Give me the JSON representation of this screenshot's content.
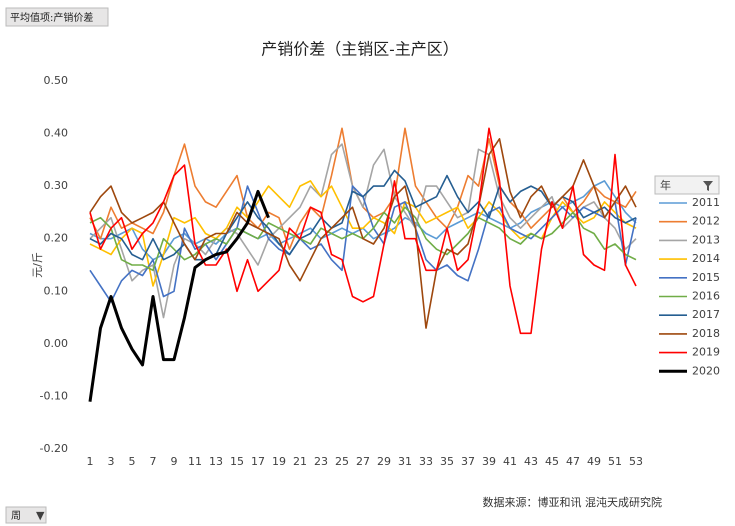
{
  "pivot_field": "平均值项:产销价差",
  "axis_field": "周",
  "legend_title": "年",
  "chart_data": {
    "type": "line",
    "title": "产销价差（主销区-主产区）",
    "y_label": "元/斤",
    "source": "数据来源：博亚和讯 混沌天成研究院",
    "categories": [
      1,
      null,
      3,
      null,
      5,
      null,
      7,
      null,
      9,
      null,
      11,
      null,
      13,
      null,
      15,
      null,
      17,
      null,
      19,
      null,
      21,
      null,
      23,
      null,
      25,
      null,
      27,
      null,
      29,
      null,
      31,
      null,
      33,
      null,
      35,
      null,
      37,
      null,
      39,
      null,
      41,
      null,
      43,
      null,
      45,
      null,
      47,
      null,
      49,
      null,
      51,
      null,
      53
    ],
    "ylim": [
      -0.2,
      0.5
    ],
    "yticks": [
      {
        "value": -0.2,
        "label": "-0.20"
      },
      {
        "value": -0.1,
        "label": "-0.10"
      },
      {
        "value": 0,
        "label": "0.00"
      },
      {
        "value": 0.1,
        "label": "0.10"
      },
      {
        "value": 0.2,
        "label": "0.20"
      },
      {
        "value": 0.3,
        "label": "0.30"
      },
      {
        "value": 0.4,
        "label": "0.40"
      },
      {
        "value": 0.5,
        "label": "0.50"
      }
    ],
    "grid": false,
    "legend": "right",
    "series": [
      {
        "name": "2011",
        "color": "#5b9bd5",
        "values": [
          0.21,
          0.2,
          0.2,
          0.21,
          0.22,
          0.18,
          0.16,
          0.17,
          0.2,
          0.21,
          0.19,
          0.2,
          0.19,
          0.21,
          0.22,
          0.21,
          0.2,
          0.21,
          0.19,
          0.2,
          0.21,
          0.22,
          0.2,
          0.21,
          0.22,
          0.21,
          0.22,
          0.2,
          0.21,
          0.22,
          0.24,
          0.23,
          0.21,
          0.2,
          0.22,
          0.23,
          0.24,
          0.25,
          0.24,
          0.23,
          0.22,
          0.23,
          0.25,
          0.26,
          0.27,
          0.26,
          0.27,
          0.28,
          0.3,
          0.31,
          0.28,
          0.25,
          0.23
        ]
      },
      {
        "name": "2012",
        "color": "#ed7d31",
        "values": [
          0.24,
          0.2,
          0.26,
          0.22,
          0.23,
          0.22,
          0.21,
          0.25,
          0.32,
          0.38,
          0.3,
          0.27,
          0.26,
          0.29,
          0.32,
          0.24,
          0.22,
          0.25,
          0.24,
          0.18,
          0.23,
          0.26,
          0.24,
          0.32,
          0.41,
          0.3,
          0.26,
          0.24,
          0.25,
          0.28,
          0.41,
          0.3,
          0.27,
          0.24,
          0.22,
          0.26,
          0.32,
          0.3,
          0.39,
          0.3,
          0.27,
          0.25,
          0.22,
          0.24,
          0.26,
          0.28,
          0.25,
          0.27,
          0.3,
          0.28,
          0.27,
          0.26,
          0.29
        ]
      },
      {
        "name": "2013",
        "color": "#a5a5a5",
        "values": [
          0.2,
          0.22,
          0.24,
          0.18,
          0.12,
          0.14,
          0.15,
          0.05,
          0.15,
          0.2,
          0.19,
          0.17,
          0.2,
          0.22,
          0.21,
          0.18,
          0.15,
          0.2,
          0.22,
          0.24,
          0.26,
          0.3,
          0.28,
          0.36,
          0.38,
          0.3,
          0.26,
          0.34,
          0.37,
          0.28,
          0.25,
          0.22,
          0.3,
          0.3,
          0.27,
          0.24,
          0.25,
          0.37,
          0.36,
          0.28,
          0.24,
          0.22,
          0.24,
          0.26,
          0.28,
          0.22,
          0.24,
          0.26,
          0.27,
          0.24,
          0.22,
          0.18,
          0.2
        ]
      },
      {
        "name": "2014",
        "color": "#ffc000",
        "values": [
          0.19,
          0.18,
          0.17,
          0.2,
          0.22,
          0.21,
          0.11,
          0.17,
          0.24,
          0.23,
          0.24,
          0.21,
          0.2,
          0.22,
          0.26,
          0.24,
          0.27,
          0.3,
          0.28,
          0.26,
          0.3,
          0.31,
          0.28,
          0.3,
          0.26,
          0.22,
          0.22,
          0.24,
          0.23,
          0.21,
          0.27,
          0.26,
          0.23,
          0.24,
          0.25,
          0.26,
          0.22,
          0.24,
          0.27,
          0.25,
          0.22,
          0.2,
          0.21,
          0.2,
          0.24,
          0.27,
          0.25,
          0.23,
          0.24,
          0.27,
          0.25,
          0.23,
          0.22
        ]
      },
      {
        "name": "2015",
        "color": "#4472c4",
        "values": [
          0.14,
          0.11,
          0.08,
          0.12,
          0.14,
          0.13,
          0.16,
          0.09,
          0.1,
          0.22,
          0.18,
          0.19,
          0.16,
          0.19,
          0.22,
          0.3,
          0.25,
          0.2,
          0.18,
          0.17,
          0.2,
          0.18,
          0.19,
          0.16,
          0.14,
          0.3,
          0.28,
          0.22,
          0.19,
          0.26,
          0.27,
          0.22,
          0.16,
          0.14,
          0.15,
          0.13,
          0.12,
          0.18,
          0.25,
          0.26,
          0.22,
          0.21,
          0.2,
          0.22,
          0.24,
          0.26,
          0.24,
          0.26,
          0.25,
          0.24,
          0.27,
          0.15,
          0.24
        ]
      },
      {
        "name": "2016",
        "color": "#70ad47",
        "values": [
          0.23,
          0.24,
          0.22,
          0.16,
          0.15,
          0.15,
          0.14,
          0.2,
          0.18,
          0.16,
          0.17,
          0.19,
          0.2,
          0.19,
          0.22,
          0.21,
          0.2,
          0.23,
          0.22,
          0.21,
          0.2,
          0.19,
          0.22,
          0.21,
          0.2,
          0.21,
          0.2,
          0.22,
          0.25,
          0.23,
          0.26,
          0.24,
          0.2,
          0.18,
          0.17,
          0.19,
          0.21,
          0.24,
          0.23,
          0.22,
          0.2,
          0.19,
          0.21,
          0.2,
          0.21,
          0.23,
          0.25,
          0.22,
          0.21,
          0.18,
          0.19,
          0.17,
          0.16
        ]
      },
      {
        "name": "2017",
        "color": "#255e91",
        "values": [
          0.2,
          0.19,
          0.21,
          0.2,
          0.17,
          0.16,
          0.2,
          0.16,
          0.17,
          0.19,
          0.16,
          0.16,
          0.17,
          0.21,
          0.24,
          0.27,
          0.24,
          0.22,
          0.19,
          0.17,
          0.2,
          0.21,
          0.24,
          0.22,
          0.23,
          0.29,
          0.28,
          0.3,
          0.3,
          0.33,
          0.31,
          0.26,
          0.27,
          0.28,
          0.32,
          0.28,
          0.25,
          0.27,
          0.24,
          0.3,
          0.27,
          0.29,
          0.3,
          0.29,
          0.26,
          0.28,
          0.27,
          0.24,
          0.25,
          0.26,
          0.24,
          0.23,
          0.24
        ]
      },
      {
        "name": "2018",
        "color": "#9e480e",
        "values": [
          0.25,
          0.28,
          0.3,
          0.25,
          0.23,
          0.24,
          0.25,
          0.27,
          0.23,
          0.19,
          0.16,
          0.2,
          0.21,
          0.21,
          0.25,
          0.23,
          0.22,
          0.21,
          0.2,
          0.15,
          0.12,
          0.16,
          0.2,
          0.22,
          0.24,
          0.26,
          0.2,
          0.19,
          0.22,
          0.28,
          0.3,
          0.22,
          0.03,
          0.14,
          0.18,
          0.17,
          0.19,
          0.26,
          0.36,
          0.39,
          0.29,
          0.24,
          0.28,
          0.3,
          0.26,
          0.28,
          0.3,
          0.35,
          0.3,
          0.24,
          0.27,
          0.3,
          0.26
        ]
      },
      {
        "name": "2019",
        "color": "#ff0000",
        "values": [
          0.25,
          0.18,
          0.22,
          0.24,
          0.18,
          0.21,
          0.23,
          0.27,
          0.32,
          0.34,
          0.19,
          0.15,
          0.15,
          0.18,
          0.1,
          0.16,
          0.1,
          0.12,
          0.14,
          0.22,
          0.2,
          0.26,
          0.25,
          0.17,
          0.16,
          0.09,
          0.08,
          0.09,
          0.19,
          0.31,
          0.2,
          0.2,
          0.14,
          0.14,
          0.22,
          0.14,
          0.16,
          0.26,
          0.41,
          0.31,
          0.11,
          0.02,
          0.02,
          0.18,
          0.27,
          0.22,
          0.3,
          0.17,
          0.15,
          0.14,
          0.36,
          0.15,
          0.11
        ]
      },
      {
        "name": "2020",
        "color": "#000000",
        "values": [
          -0.11,
          0.03,
          0.09,
          0.03,
          -0.01,
          -0.04,
          0.09,
          -0.03,
          -0.03,
          0.05,
          0.145,
          0.16,
          0.17,
          0.175,
          0.2,
          0.23,
          0.29,
          0.24,
          null,
          null,
          null,
          null,
          null,
          null,
          null,
          null,
          null,
          null,
          null,
          null,
          null,
          null,
          null,
          null,
          null,
          null,
          null,
          null,
          null,
          null,
          null,
          null,
          null,
          null,
          null,
          null,
          null,
          null,
          null,
          null,
          null,
          null,
          null
        ]
      }
    ]
  }
}
